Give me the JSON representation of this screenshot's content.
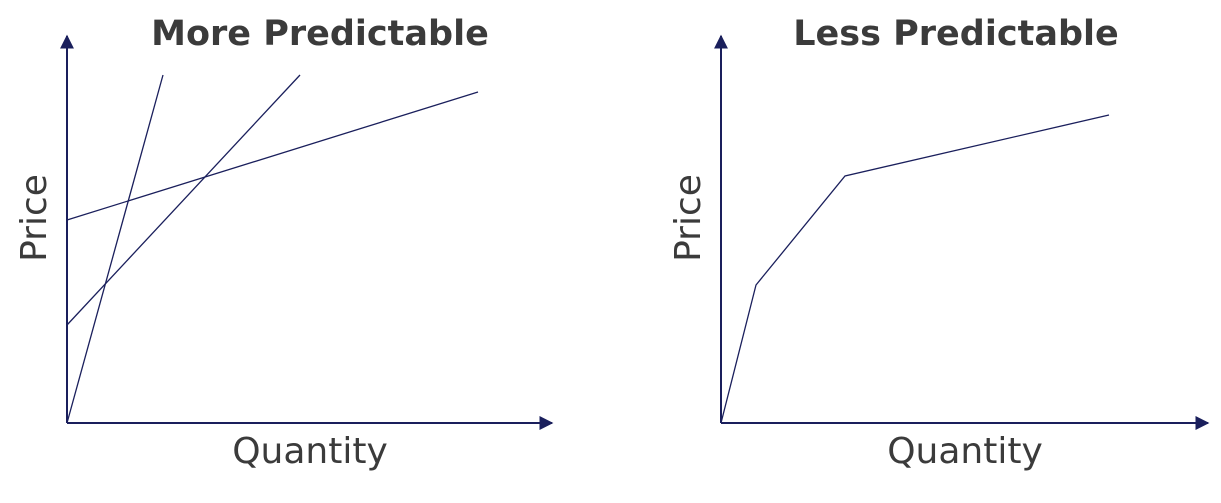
{
  "panels": [
    {
      "title": "More Predictable",
      "y_label": "Price",
      "x_label": "Quantity"
    },
    {
      "title": "Less Predictable",
      "y_label": "Price",
      "x_label": "Quantity"
    }
  ]
}
